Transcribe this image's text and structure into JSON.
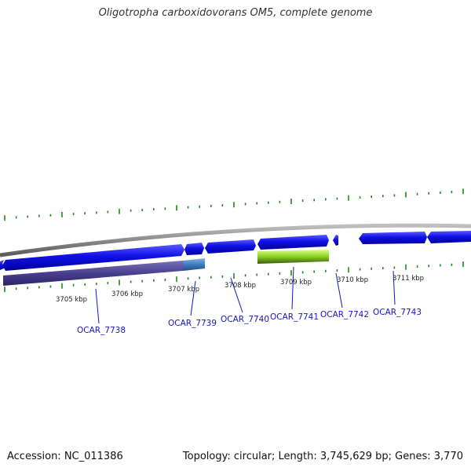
{
  "title": "Oligotropha carboxidovorans OM5, complete genome",
  "footer": {
    "accession": "Accession: NC_011386",
    "summary": "Topology: circular; Length: 3,745,629 bp; Genes: 3,770"
  },
  "colors": {
    "backbone": "#8c8c8c",
    "gene_forward": "#0a0ad8",
    "tick": "#1a8a1a",
    "label_blue": "#1515c8"
  },
  "kbp_labels": [
    "3705 kbp",
    "3706 kbp",
    "3707 kbp",
    "3708 kbp",
    "3709 kbp",
    "3710 kbp",
    "3711 kbp"
  ],
  "gene_labels": [
    "OCAR_7738",
    "OCAR_7739",
    "OCAR_7740",
    "OCAR_7741",
    "OCAR_7742",
    "OCAR_7743"
  ]
}
